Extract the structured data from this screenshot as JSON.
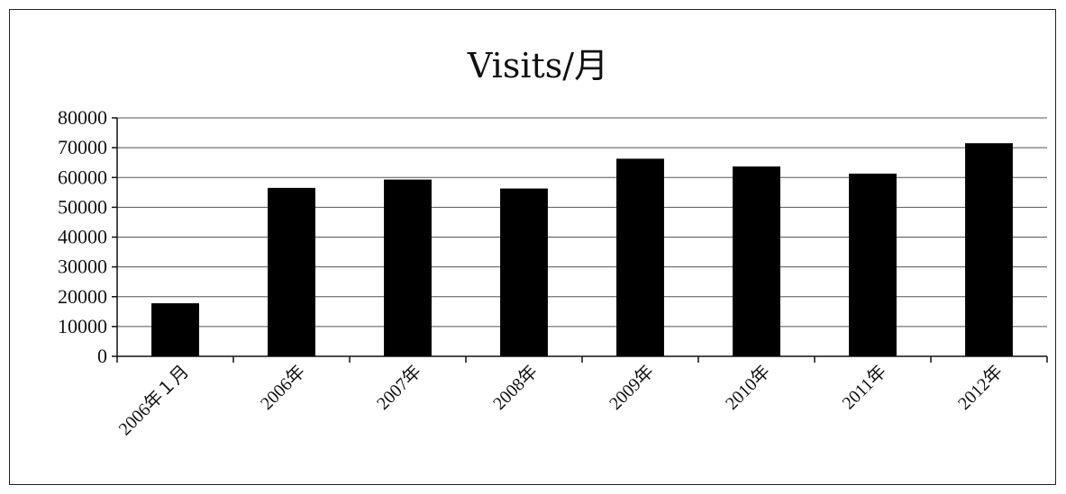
{
  "chart_data": {
    "type": "bar",
    "title": "Visits/月",
    "xlabel": "",
    "ylabel": "",
    "categories": [
      "2006年１月",
      "2006年",
      "2007年",
      "2008年",
      "2009年",
      "2010年",
      "2011年",
      "2012年"
    ],
    "values": [
      17800,
      56500,
      59300,
      56300,
      66300,
      63700,
      61300,
      71500
    ],
    "ylim": [
      0,
      80000
    ],
    "yticks": [
      0,
      10000,
      20000,
      30000,
      40000,
      50000,
      60000,
      70000,
      80000
    ],
    "grid": true,
    "legend": "none",
    "bar_color": "#000000"
  }
}
